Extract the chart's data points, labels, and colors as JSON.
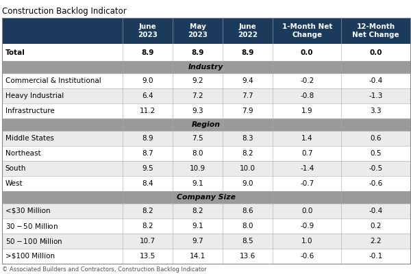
{
  "title": "Construction Backlog Indicator",
  "footer": "© Associated Builders and Contractors, Construction Backlog Indicator",
  "col_headers": [
    "June\n2023",
    "May\n2023",
    "June\n2022",
    "1-Month Net\nChange",
    "12-Month\nNet Change"
  ],
  "header_bg": "#1b3a5c",
  "header_fg": "#ffffff",
  "section_bg": "#9a9a9a",
  "section_fg": "#000000",
  "row_alt1": "#ffffff",
  "row_alt2": "#ebebeb",
  "border_color": "#aaaaaa",
  "total_row": {
    "label": "Total",
    "values": [
      "8.9",
      "8.9",
      "8.9",
      "0.0",
      "0.0"
    ]
  },
  "sections": [
    {
      "name": "Industry",
      "rows": [
        {
          "label": "Commercial & Institutional",
          "values": [
            "9.0",
            "9.2",
            "9.4",
            "-0.2",
            "-0.4"
          ]
        },
        {
          "label": "Heavy Industrial",
          "values": [
            "6.4",
            "7.2",
            "7.7",
            "-0.8",
            "-1.3"
          ]
        },
        {
          "label": "Infrastructure",
          "values": [
            "11.2",
            "9.3",
            "7.9",
            "1.9",
            "3.3"
          ]
        }
      ]
    },
    {
      "name": "Region",
      "rows": [
        {
          "label": "Middle States",
          "values": [
            "8.9",
            "7.5",
            "8.3",
            "1.4",
            "0.6"
          ]
        },
        {
          "label": "Northeast",
          "values": [
            "8.7",
            "8.0",
            "8.2",
            "0.7",
            "0.5"
          ]
        },
        {
          "label": "South",
          "values": [
            "9.5",
            "10.9",
            "10.0",
            "-1.4",
            "-0.5"
          ]
        },
        {
          "label": "West",
          "values": [
            "8.4",
            "9.1",
            "9.0",
            "-0.7",
            "-0.6"
          ]
        }
      ]
    },
    {
      "name": "Company Size",
      "rows": [
        {
          "label": "<$30 Million",
          "values": [
            "8.2",
            "8.2",
            "8.6",
            "0.0",
            "-0.4"
          ]
        },
        {
          "label": "$30-$50 Million",
          "values": [
            "8.2",
            "9.1",
            "8.0",
            "-0.9",
            "0.2"
          ]
        },
        {
          "label": "$50-$100 Million",
          "values": [
            "10.7",
            "9.7",
            "8.5",
            "1.0",
            "2.2"
          ]
        },
        {
          "label": ">$100 Million",
          "values": [
            "13.5",
            "14.1",
            "13.6",
            "-0.6",
            "-0.1"
          ]
        }
      ]
    }
  ],
  "title_fontsize": 8.5,
  "header_fontsize": 7.5,
  "body_fontsize": 7.5,
  "section_fontsize": 7.8,
  "footer_fontsize": 6.0
}
